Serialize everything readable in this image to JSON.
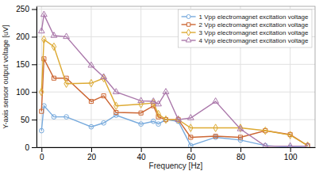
{
  "chart_data": {
    "type": "line",
    "xlabel": "Frequency [Hz]",
    "ylabel": "Y-axis sensor output voltage [uV]",
    "x": [
      0,
      1,
      5,
      10,
      20,
      25,
      30,
      40,
      45,
      47,
      50,
      55,
      60,
      70,
      80,
      90,
      100,
      107
    ],
    "series": [
      {
        "name": "1 Vpp electromagnet excitation voltage",
        "color": "#77AADD",
        "marker": "circle",
        "values": [
          30,
          75,
          55,
          55,
          37,
          44,
          58,
          42,
          47,
          42,
          50,
          47,
          3,
          18,
          13,
          3,
          0,
          2
        ]
      },
      {
        "name": "2 Vpp electromagnet excitation voltage",
        "color": "#CC6633",
        "marker": "square",
        "values": [
          65,
          160,
          125,
          125,
          83,
          93,
          63,
          62,
          75,
          55,
          50,
          50,
          18,
          20,
          18,
          30,
          23,
          3
        ]
      },
      {
        "name": "3 Vpp electromagnet excitation voltage",
        "color": "#DDAA33",
        "marker": "diamond",
        "values": [
          100,
          195,
          182,
          115,
          116,
          125,
          75,
          78,
          80,
          60,
          50,
          50,
          35,
          35,
          35,
          30,
          22,
          3
        ]
      },
      {
        "name": "4 Vpp electromagnet excitation voltage",
        "color": "#AA77AA",
        "marker": "triangle",
        "values": [
          210,
          240,
          202,
          200,
          148,
          127,
          100,
          84,
          83,
          78,
          100,
          50,
          53,
          83,
          33,
          2,
          2,
          2
        ]
      }
    ],
    "xlim": [
      -2,
      110
    ],
    "ylim": [
      0,
      255
    ],
    "xticks": [
      0,
      20,
      40,
      60,
      80,
      100
    ],
    "yticks": [
      0,
      50,
      100,
      150,
      200,
      250
    ],
    "grid": true,
    "legend": "upper right"
  }
}
